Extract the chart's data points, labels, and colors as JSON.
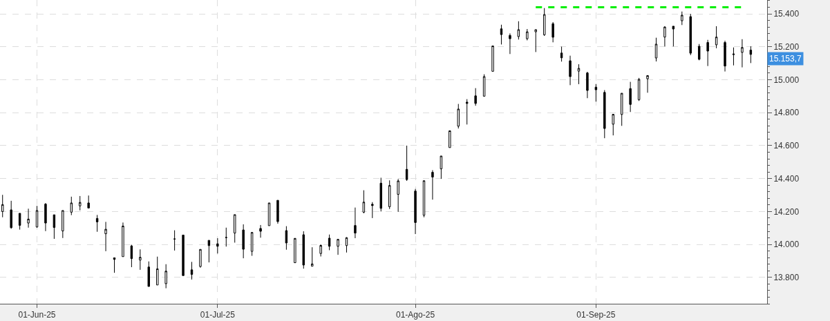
{
  "chart_data": {
    "type": "candlestick",
    "categories": [
      null,
      null,
      null,
      null,
      "01-Jun-25",
      null,
      null,
      null,
      null,
      null,
      null,
      null,
      null,
      null,
      null,
      null,
      null,
      null,
      null,
      null,
      null,
      null,
      null,
      null,
      null,
      "01-Jul-25",
      null,
      null,
      null,
      null,
      null,
      null,
      null,
      null,
      null,
      null,
      null,
      null,
      null,
      null,
      null,
      null,
      null,
      null,
      null,
      null,
      null,
      null,
      "01-Ago-25",
      null,
      null,
      null,
      null,
      null,
      null,
      null,
      null,
      null,
      null,
      null,
      null,
      null,
      null,
      null,
      null,
      null,
      null,
      null,
      null,
      "01-Sep-25",
      null,
      null,
      null,
      null,
      null,
      null,
      null,
      null,
      null,
      null,
      null,
      null,
      null,
      null,
      null,
      null,
      null,
      null
    ],
    "ohlc": [
      [
        14200,
        14301,
        14165,
        14242
      ],
      [
        14210,
        14265,
        14095,
        14102
      ],
      [
        14189,
        14189,
        14090,
        14116
      ],
      [
        14130,
        14217,
        14102,
        14154
      ],
      [
        14106,
        14234,
        14102,
        14206
      ],
      [
        14245,
        14251,
        14081,
        14130
      ],
      [
        14180,
        14180,
        14034,
        14103
      ],
      [
        14082,
        14206,
        14039,
        14206
      ],
      [
        14196,
        14290,
        14178,
        14252
      ],
      [
        14234,
        14294,
        14207,
        14255
      ],
      [
        14252,
        14297,
        14221,
        14221
      ],
      [
        14158,
        14179,
        14077,
        14137
      ],
      [
        14065,
        14137,
        13959,
        14092
      ],
      [
        13919,
        13919,
        13828,
        13909
      ],
      [
        13926,
        14133,
        13926,
        14112
      ],
      [
        13991,
        13998,
        13862,
        13914
      ],
      [
        13905,
        13970,
        13846,
        13922
      ],
      [
        13863,
        13897,
        13745,
        13745
      ],
      [
        13754,
        13926,
        13754,
        13852
      ],
      [
        13762,
        13880,
        13734,
        13838
      ],
      [
        14033,
        14086,
        13963,
        14033
      ],
      [
        14057,
        14057,
        13811,
        13811
      ],
      [
        13846,
        13894,
        13787,
        13818
      ],
      [
        13866,
        13970,
        13859,
        13970
      ],
      [
        14025,
        14025,
        13891,
        13993
      ],
      [
        14004,
        14038,
        13945,
        13989
      ],
      [
        14042,
        14102,
        13987,
        14042
      ],
      [
        14069,
        14181,
        14011,
        14181
      ],
      [
        14088,
        14122,
        13916,
        13971
      ],
      [
        13958,
        14073,
        13931,
        14073
      ],
      [
        14097,
        14118,
        14041,
        14080
      ],
      [
        14114,
        14252,
        14114,
        14252
      ],
      [
        14268,
        14268,
        14126,
        14139
      ],
      [
        14084,
        14111,
        13968,
        14009
      ],
      [
        13889,
        14037,
        13889,
        14037
      ],
      [
        14059,
        14080,
        13853,
        13875
      ],
      [
        13868,
        13983,
        13868,
        13882
      ],
      [
        13945,
        14000,
        13927,
        13994
      ],
      [
        14038,
        14060,
        13965,
        13989
      ],
      [
        13989,
        14031,
        13937,
        14031
      ],
      [
        13993,
        14044,
        13951,
        14041
      ],
      [
        14115,
        14224,
        14038,
        14069
      ],
      [
        14196,
        14329,
        14189,
        14257
      ],
      [
        14244,
        14257,
        14160,
        14236
      ],
      [
        14372,
        14405,
        14200,
        14219
      ],
      [
        14229,
        14389,
        14215,
        14358
      ],
      [
        14304,
        14397,
        14198,
        14386
      ],
      [
        14456,
        14600,
        14386,
        14394
      ],
      [
        14324,
        14337,
        14063,
        14133
      ],
      [
        14177,
        14387,
        14165,
        14387
      ],
      [
        14438,
        14451,
        14272,
        14409
      ],
      [
        14459,
        14537,
        14398,
        14537
      ],
      [
        14588,
        14690,
        14588,
        14690
      ],
      [
        14718,
        14853,
        14704,
        14822
      ],
      [
        14864,
        14882,
        14728,
        14856
      ],
      [
        14902,
        14949,
        14842,
        14856
      ],
      [
        14900,
        15033,
        14898,
        15019
      ],
      [
        15051,
        15206,
        15051,
        15205
      ],
      [
        15309,
        15334,
        15214,
        15274
      ],
      [
        15269,
        15281,
        15156,
        15249
      ],
      [
        15262,
        15355,
        15244,
        15304
      ],
      [
        15249,
        15308,
        15239,
        15291
      ],
      [
        15291,
        15304,
        15168,
        15304
      ],
      [
        15273,
        15435,
        15266,
        15396
      ],
      [
        15340,
        15350,
        15227,
        15258
      ],
      [
        15162,
        15201,
        15110,
        15133
      ],
      [
        15115,
        15146,
        14967,
        15019
      ],
      [
        15052,
        15094,
        14973,
        15069
      ],
      [
        15041,
        15048,
        14888,
        14935
      ],
      [
        14955,
        14974,
        14867,
        14939
      ],
      [
        14923,
        14937,
        14645,
        14704
      ],
      [
        14730,
        14790,
        14662,
        14790
      ],
      [
        14789,
        14918,
        14720,
        14918
      ],
      [
        14946,
        14987,
        14804,
        14850
      ],
      [
        14879,
        15011,
        14871,
        15002
      ],
      [
        15006,
        15025,
        14921,
        15025
      ],
      [
        15132,
        15255,
        15111,
        15216
      ],
      [
        15259,
        15325,
        15202,
        15320
      ],
      [
        15325,
        15325,
        15202,
        15308
      ],
      [
        15358,
        15414,
        15332,
        15392
      ],
      [
        15383,
        15400,
        15149,
        15161
      ],
      [
        15203,
        15217,
        15118,
        15124
      ],
      [
        15226,
        15242,
        15083,
        15174
      ],
      [
        15212,
        15325,
        15191,
        15259
      ],
      [
        15226,
        15237,
        15050,
        15083
      ],
      [
        15152,
        15196,
        15087,
        15156
      ],
      [
        15166,
        15246,
        15075,
        15196
      ],
      [
        15180,
        15203,
        15101,
        15153.7
      ]
    ],
    "color": "#000000",
    "series": [
      {
        "type": "line",
        "values": [
          null,
          null,
          null,
          null,
          null,
          null,
          null,
          null,
          null,
          null,
          null,
          null,
          null,
          null,
          null,
          null,
          null,
          null,
          null,
          null,
          null,
          null,
          null,
          null,
          null,
          null,
          null,
          null,
          null,
          null,
          null,
          null,
          null,
          null,
          null,
          null,
          null,
          null,
          null,
          null,
          null,
          null,
          null,
          null,
          null,
          null,
          null,
          null,
          null,
          null,
          null,
          null,
          null,
          null,
          null,
          null,
          null,
          null,
          null,
          null,
          null,
          null,
          15440,
          15440,
          15440,
          15440,
          15440,
          15440,
          15440,
          15440,
          15440,
          15440,
          15440,
          15440,
          15440,
          15440,
          15440,
          15440,
          15440,
          15440,
          15440,
          15440,
          15440,
          15440,
          15440,
          15440,
          15440,
          null
        ],
        "color": "#00ee00",
        "line_style": "dashed"
      }
    ],
    "ylim": [
      13640,
      15484
    ],
    "yticks": [
      {
        "value": 13800,
        "label": "13.800"
      },
      {
        "value": 14000,
        "label": "14.000"
      },
      {
        "value": 14200,
        "label": "14.200"
      },
      {
        "value": 14400,
        "label": "14.400"
      },
      {
        "value": 14600,
        "label": "14.600"
      },
      {
        "value": 14800,
        "label": "14.800"
      },
      {
        "value": 15000,
        "label": "15.000"
      },
      {
        "value": 15200,
        "label": "15.200"
      },
      {
        "value": 15400,
        "label": "15.400"
      }
    ],
    "annotations": [
      "15.153,7"
    ],
    "grid": true
  }
}
